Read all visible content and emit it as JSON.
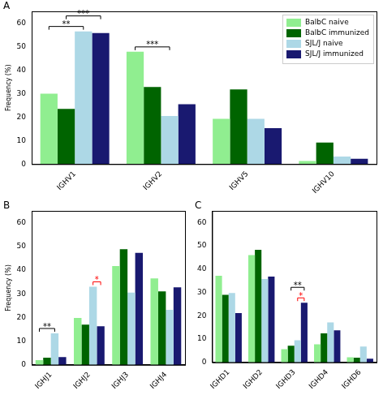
{
  "chart_data": [
    {
      "type": "bar",
      "title": "A",
      "y_label": "Frequency (%)",
      "categories": [
        "IGHV1",
        "IGHV2",
        "IGHV5",
        "IGHV10"
      ],
      "series": [
        {
          "name": "BalbC naive",
          "color": "#90ee90",
          "values": [
            30,
            47.8,
            19.3,
            1.3
          ]
        },
        {
          "name": "BalbC immunized",
          "color": "#006400",
          "values": [
            23.5,
            32.8,
            31.8,
            9.2
          ]
        },
        {
          "name": "SJL/J naive",
          "color": "#add8e6",
          "values": [
            56.5,
            20.5,
            19.3,
            3.2
          ]
        },
        {
          "name": "SJL/J immunized",
          "color": "#191970",
          "values": [
            55.8,
            25.5,
            15.3,
            2.3
          ]
        }
      ],
      "ylim": [
        0,
        65
      ],
      "yticks": [
        0,
        10,
        20,
        30,
        40,
        50,
        60
      ],
      "grid": false,
      "legend": "upper right",
      "annotations": [
        {
          "text": "**",
          "category": "IGHV1",
          "series": [
            "BalbC naive",
            "SJL/J naive"
          ],
          "color": "#000000"
        },
        {
          "text": "***",
          "category": "IGHV1",
          "series": [
            "BalbC immunized",
            "SJL/J immunized"
          ],
          "color": "#000000"
        },
        {
          "text": "***",
          "category": "IGHV2",
          "series": [
            "BalbC naive",
            "SJL/J naive"
          ],
          "color": "#000000"
        }
      ]
    },
    {
      "type": "bar",
      "title": "B",
      "y_label": "Frequency (%)",
      "categories": [
        "IGHJ1",
        "IGHJ2",
        "IGHJ3",
        "IGHJ4"
      ],
      "series": [
        {
          "name": "BalbC naive",
          "color": "#90ee90",
          "values": [
            2,
            19.8,
            41.7,
            36.5
          ]
        },
        {
          "name": "BalbC immunized",
          "color": "#006400",
          "values": [
            3,
            17,
            48.8,
            31
          ]
        },
        {
          "name": "SJL/J naive",
          "color": "#add8e6",
          "values": [
            13.3,
            33,
            30.5,
            23.2
          ]
        },
        {
          "name": "SJL/J immunized",
          "color": "#191970",
          "values": [
            3.3,
            16.3,
            47.3,
            32.7
          ]
        }
      ],
      "ylim": [
        0,
        65
      ],
      "yticks": [
        0,
        10,
        20,
        30,
        40,
        50,
        60
      ],
      "grid": false,
      "annotations": [
        {
          "text": "**",
          "category": "IGHJ1",
          "series": [
            "BalbC naive",
            "SJL/J naive"
          ],
          "color": "#000000"
        },
        {
          "text": "*",
          "category": "IGHJ2",
          "series": [
            "SJL/J naive",
            "SJL/J immunized"
          ],
          "color": "#ff0000"
        }
      ]
    },
    {
      "type": "bar",
      "title": "C",
      "categories": [
        "IGHD1",
        "IGHD2",
        "IGHD3",
        "IGHD4",
        "IGHD6"
      ],
      "series": [
        {
          "name": "BalbC naive",
          "color": "#90ee90",
          "values": [
            37.2,
            46,
            5.7,
            7.8,
            2.2
          ]
        },
        {
          "name": "BalbC immunized",
          "color": "#006400",
          "values": [
            29,
            48.3,
            7.2,
            12.5,
            2
          ]
        },
        {
          "name": "SJL/J naive",
          "color": "#add8e6",
          "values": [
            29.8,
            35.8,
            9.5,
            17.2,
            6.8
          ]
        },
        {
          "name": "SJL/J immunized",
          "color": "#191970",
          "values": [
            21.2,
            36.8,
            25.6,
            13.8,
            1.6
          ]
        }
      ],
      "ylim": [
        0,
        65
      ],
      "yticks": [
        0,
        10,
        20,
        30,
        40,
        50,
        60
      ],
      "grid": false,
      "annotations": [
        {
          "text": "*",
          "category": "IGHD3",
          "series": [
            "SJL/J naive",
            "SJL/J immunized"
          ],
          "color": "#ff0000"
        },
        {
          "text": "**",
          "category": "IGHD3",
          "series": [
            "BalbC immunized",
            "SJL/J immunized"
          ],
          "color": "#000000"
        }
      ]
    }
  ]
}
